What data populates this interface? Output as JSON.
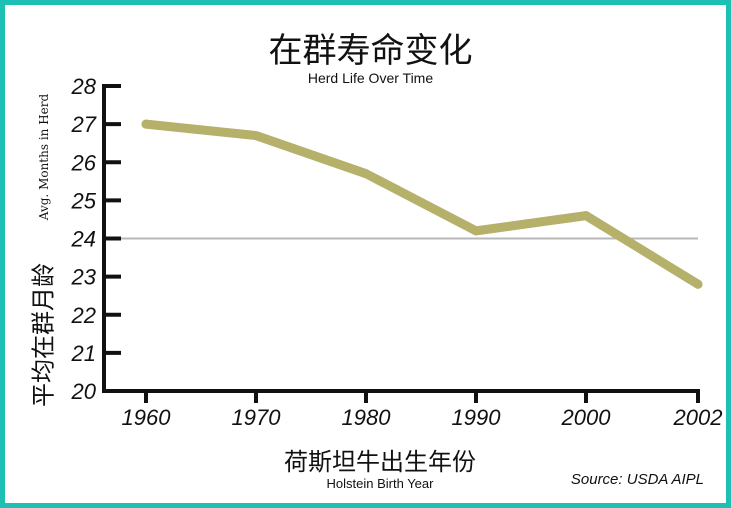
{
  "chart_data": {
    "type": "line",
    "title": "在群寿命变化",
    "subtitle": "Herd Life Over Time",
    "xlabel": "荷斯坦牛出生年份",
    "xlabel_sub": "Holstein Birth Year",
    "ylabel": "平均在群月龄",
    "ylabel_sub": "Avg. Months in Herd",
    "source": "Source: USDA AIPL",
    "categories": [
      "1960",
      "1970",
      "1980",
      "1990",
      "2000",
      "2002"
    ],
    "x": [
      1960,
      1970,
      1980,
      1990,
      2000,
      2002
    ],
    "series": [
      {
        "values": [
          27.0,
          26.7,
          25.7,
          24.2,
          24.6,
          22.8
        ]
      }
    ],
    "reference_line": 24,
    "ylim": [
      20,
      28
    ],
    "yticks": [
      20,
      21,
      22,
      23,
      24,
      25,
      26,
      27,
      28
    ],
    "grid": false,
    "legend": "none",
    "colors": {
      "line": "#b5b06a",
      "reference": "#b8b8b8",
      "axis": "#111111",
      "frame": "#1fc0b4"
    }
  }
}
